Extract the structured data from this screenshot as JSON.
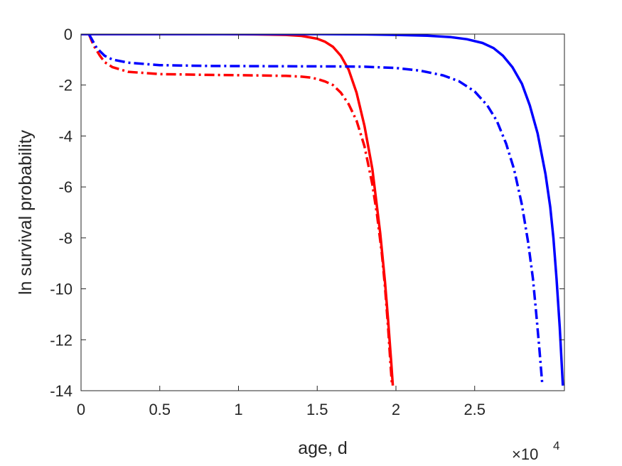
{
  "chart_data": {
    "type": "line",
    "title": "",
    "xlabel": "age, d",
    "ylabel": "ln survival probability",
    "x_exponent_base": "×10",
    "x_exponent_power": "4",
    "xlim": [
      0,
      3.07
    ],
    "ylim": [
      -14,
      0
    ],
    "x_ticks": [
      0,
      0.5,
      1,
      1.5,
      2,
      2.5
    ],
    "x_tick_labels": [
      "0",
      "0.5",
      "1",
      "1.5",
      "2",
      "2.5"
    ],
    "y_ticks": [
      0,
      -2,
      -4,
      -6,
      -8,
      -10,
      -12,
      -14
    ],
    "y_tick_labels": [
      "0",
      "-2",
      "-4",
      "-6",
      "-8",
      "-10",
      "-12",
      "-14"
    ],
    "grid": false,
    "legend": "none",
    "series": [
      {
        "color": "#ff0000",
        "style": "solid",
        "x": [
          0,
          0.3,
          0.6,
          0.9,
          1.1,
          1.3,
          1.4,
          1.5,
          1.55,
          1.6,
          1.65,
          1.7,
          1.75,
          1.8,
          1.85,
          1.9,
          1.93,
          1.95,
          1.97,
          1.98
        ],
        "y": [
          0,
          0,
          0,
          0,
          -0.01,
          -0.03,
          -0.07,
          -0.18,
          -0.3,
          -0.5,
          -0.85,
          -1.4,
          -2.3,
          -3.6,
          -5.3,
          -7.8,
          -9.7,
          -11.2,
          -12.9,
          -13.8
        ]
      },
      {
        "color": "#ff0000",
        "style": "dashdot",
        "x": [
          0.05,
          0.08,
          0.12,
          0.15,
          0.2,
          0.3,
          0.5,
          0.8,
          1.1,
          1.3,
          1.4,
          1.45,
          1.5,
          1.55,
          1.6,
          1.65,
          1.7,
          1.75,
          1.8,
          1.85,
          1.88,
          1.91,
          1.93,
          1.95,
          1.965,
          1.975
        ],
        "y": [
          0,
          -0.45,
          -0.85,
          -1.1,
          -1.3,
          -1.48,
          -1.57,
          -1.6,
          -1.62,
          -1.64,
          -1.67,
          -1.7,
          -1.76,
          -1.86,
          -2.0,
          -2.3,
          -2.75,
          -3.4,
          -4.4,
          -5.9,
          -7.1,
          -8.6,
          -9.9,
          -11.5,
          -12.9,
          -13.8
        ]
      },
      {
        "color": "#0000ff",
        "style": "solid",
        "x": [
          0,
          0.5,
          1,
          1.5,
          1.8,
          2.0,
          2.2,
          2.35,
          2.45,
          2.55,
          2.62,
          2.68,
          2.74,
          2.8,
          2.85,
          2.9,
          2.95,
          2.98,
          3.0,
          3.02,
          3.04,
          3.06
        ],
        "y": [
          0,
          0,
          0,
          0,
          -0.01,
          -0.03,
          -0.06,
          -0.12,
          -0.2,
          -0.35,
          -0.55,
          -0.85,
          -1.3,
          -1.95,
          -2.8,
          -3.9,
          -5.5,
          -6.8,
          -8.0,
          -9.6,
          -11.5,
          -13.8
        ]
      },
      {
        "color": "#0000ff",
        "style": "dashdot",
        "x": [
          0.05,
          0.1,
          0.15,
          0.2,
          0.3,
          0.5,
          0.8,
          1.2,
          1.6,
          1.8,
          2.0,
          2.15,
          2.3,
          2.4,
          2.5,
          2.58,
          2.64,
          2.7,
          2.75,
          2.8,
          2.84,
          2.87,
          2.89,
          2.91,
          2.93
        ],
        "y": [
          0,
          -0.55,
          -0.85,
          -1.0,
          -1.12,
          -1.22,
          -1.25,
          -1.26,
          -1.27,
          -1.28,
          -1.33,
          -1.43,
          -1.62,
          -1.85,
          -2.25,
          -2.8,
          -3.4,
          -4.3,
          -5.3,
          -6.7,
          -8.2,
          -9.6,
          -10.9,
          -12.3,
          -13.8
        ]
      }
    ]
  }
}
